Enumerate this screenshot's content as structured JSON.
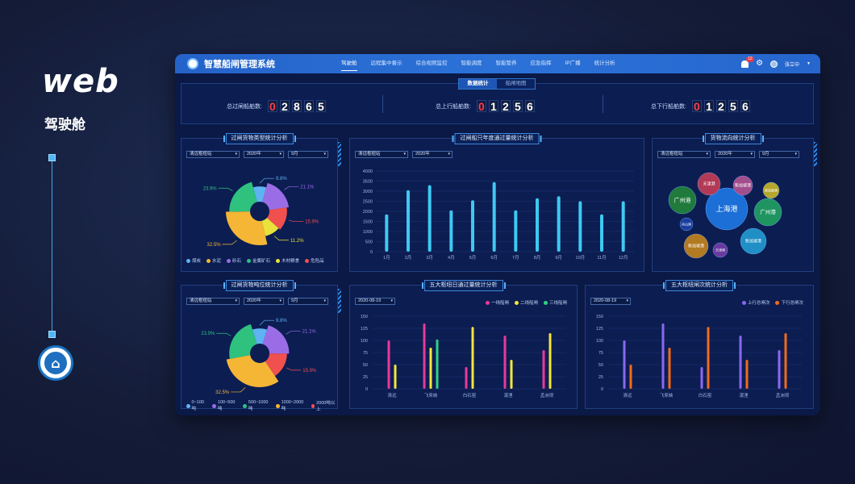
{
  "branding": {
    "title": "web",
    "subtitle": "驾驶舱"
  },
  "app": {
    "title": "智慧船闸管理系统"
  },
  "nav": [
    {
      "label": "驾驶舱",
      "active": true
    },
    {
      "label": "远程集中督示",
      "active": false
    },
    {
      "label": "综合视频监控",
      "active": false
    },
    {
      "label": "智能调度",
      "active": false
    },
    {
      "label": "智能管养",
      "active": false
    },
    {
      "label": "应急指挥",
      "active": false
    },
    {
      "label": "IP广播",
      "active": false
    },
    {
      "label": "统计分析",
      "active": false
    }
  ],
  "user": {
    "name": "张立中",
    "notifications": "12"
  },
  "tabs": [
    "数据统计",
    "船闸地图"
  ],
  "stats": [
    {
      "label": "总过闸船舶数:",
      "digits": [
        "0",
        "2",
        "8",
        "6",
        "5"
      ]
    },
    {
      "label": "总上行船舶数:",
      "digits": [
        "0",
        "1",
        "2",
        "5",
        "6"
      ]
    },
    {
      "label": "总下行船舶数:",
      "digits": [
        "0",
        "1",
        "2",
        "5",
        "6"
      ]
    }
  ],
  "colors": {
    "coal": "#5fb3f2",
    "cement": "#f5b635",
    "sand": "#9a6de6",
    "ore": "#2ec27e",
    "wood": "#e8e23a",
    "danger": "#f0504e",
    "bar_blue": "#3ec9f2",
    "line1": "#e83a9a",
    "line2": "#f5e53a",
    "line3": "#2ed184",
    "up": "#8b68f0",
    "down": "#f26a1b"
  },
  "panels": {
    "cargo_type": {
      "title": "过闸货物类型统计分析",
      "filters": [
        "清远枢纽站",
        "2020年",
        "9月"
      ],
      "chart_data": {
        "type": "pie",
        "variant": "rose",
        "labels": [
          "煤炭",
          "水泥",
          "砂石",
          "金属矿石",
          "木材粮食",
          "危险品"
        ],
        "values": [
          9.8,
          32.5,
          23.9,
          11.2,
          15.9,
          21.1
        ],
        "value_labels": [
          "9.8%",
          "32.5%",
          "23.9%",
          "11.2%",
          "15.9%",
          "21.1%"
        ]
      }
    },
    "annual": {
      "title": "过闸船只年度通过量统计分析",
      "filters": [
        "清远枢纽站",
        "2020年"
      ],
      "chart_data": {
        "type": "bar",
        "categories": [
          "1月",
          "2月",
          "3月",
          "4月",
          "5月",
          "6月",
          "7月",
          "8月",
          "9月",
          "10月",
          "11月",
          "12月"
        ],
        "values": [
          1850,
          3050,
          3300,
          2050,
          2550,
          3450,
          2050,
          2650,
          2750,
          2500,
          1850,
          2500
        ],
        "ylim": [
          0,
          4000
        ],
        "yticks": [
          "0",
          "500",
          "1000",
          "1500",
          "2000",
          "2500",
          "3000",
          "3500",
          "4000"
        ]
      }
    },
    "flow": {
      "title": "货物流向统计分析",
      "filters": [
        "清远枢纽站",
        "2020年",
        "9月"
      ],
      "bubbles": [
        "上海港",
        "广州港",
        "天津港",
        "新加坡港",
        "广州港",
        "新加坡港",
        "新加坡港",
        "新加坡港",
        "舟山港",
        "天津港"
      ]
    },
    "tonnage": {
      "title": "过闸货物吨位统计分析",
      "filters": [
        "清远枢纽站",
        "2020年",
        "9月"
      ],
      "chart_data": {
        "type": "pie",
        "variant": "rose",
        "labels": [
          "0~100吨",
          "100~500吨",
          "500~1000吨",
          "1000~2000吨",
          "2000吨以上"
        ],
        "values": [
          9.8,
          32.5,
          23.9,
          15.9,
          21.1
        ],
        "value_labels": [
          "9.8%",
          "32.5%",
          "23.9%",
          "15.9%",
          "21.1%"
        ]
      }
    },
    "daily": {
      "title": "五大枢纽日通过量统计分析",
      "date": "2020-08-19",
      "chart_data": {
        "type": "bar",
        "categories": [
          "清远",
          "飞来峡",
          "白石窑",
          "濛浬",
          "孟洲坝"
        ],
        "series": [
          {
            "name": "一线船闸",
            "values": [
              100,
              135,
              45,
              110,
              80
            ]
          },
          {
            "name": "二线船闸",
            "values": [
              50,
              85,
              128,
              60,
              115
            ]
          },
          {
            "name": "三线船闸",
            "values": [
              0,
              102,
              0,
              0,
              0
            ]
          }
        ],
        "ylim": [
          0,
          150
        ],
        "yticks": [
          "0",
          "25",
          "50",
          "75",
          "100",
          "125",
          "150"
        ]
      }
    },
    "times": {
      "title": "五大枢纽闸次统计分析",
      "date": "2020-08-19",
      "chart_data": {
        "type": "bar",
        "categories": [
          "清远",
          "飞来峡",
          "白石窑",
          "濛浬",
          "孟洲坝"
        ],
        "series": [
          {
            "name": "上行总闸次",
            "values": [
              100,
              135,
              45,
              110,
              80
            ]
          },
          {
            "name": "下行总闸次",
            "values": [
              50,
              85,
              128,
              60,
              115
            ]
          }
        ],
        "ylim": [
          0,
          150
        ],
        "yticks": [
          "0",
          "25",
          "50",
          "75",
          "100",
          "125",
          "150"
        ]
      }
    }
  }
}
